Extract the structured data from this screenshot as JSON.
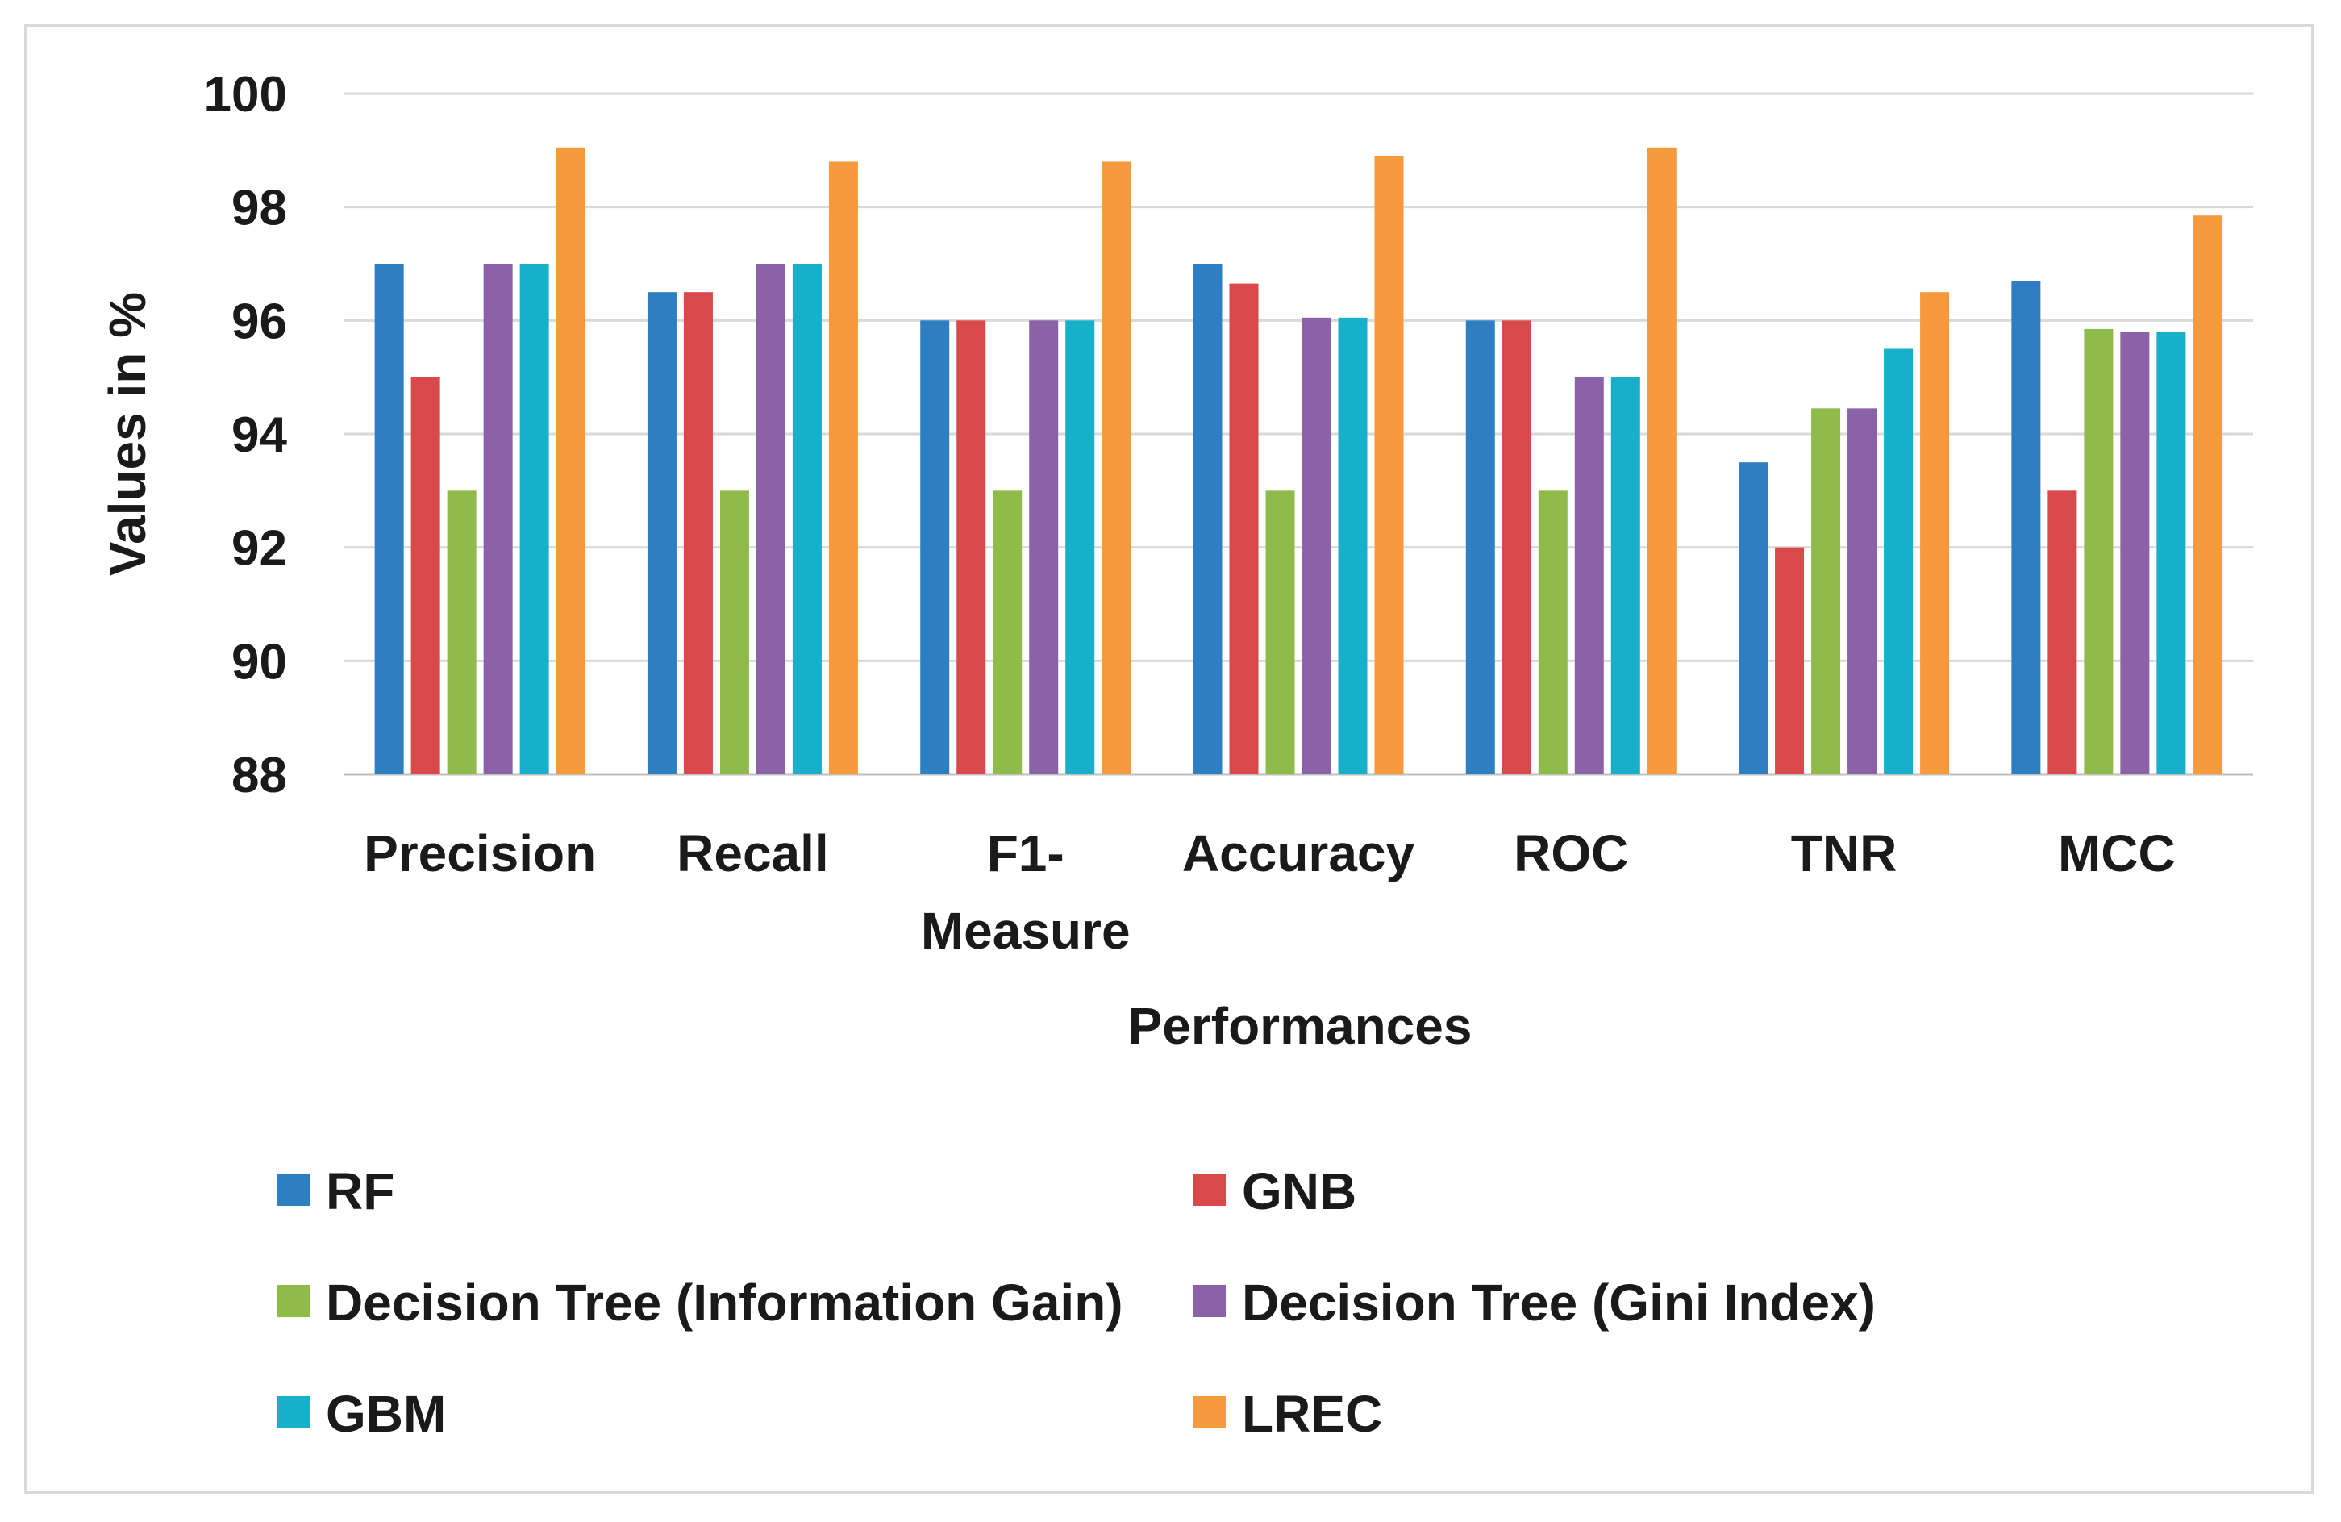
{
  "chart_data": {
    "type": "bar",
    "title": "",
    "xlabel": "Performances",
    "ylabel": "Values in %",
    "ylim": [
      88,
      100
    ],
    "yticks": [
      "88",
      "90",
      "92",
      "94",
      "96",
      "98",
      "100"
    ],
    "grid": true,
    "legend_position": "bottom",
    "categories": [
      [
        "Precision"
      ],
      [
        "Recall"
      ],
      [
        "F1-",
        "Measure"
      ],
      [
        "Accuracy"
      ],
      [
        "ROC"
      ],
      [
        "TNR"
      ],
      [
        "MCC"
      ]
    ],
    "series": [
      {
        "name": "RF",
        "color": "#2e7fc1",
        "values": [
          97,
          96.5,
          96,
          97,
          96,
          93.5,
          96.7
        ]
      },
      {
        "name": "GNB",
        "color": "#d9494b",
        "values": [
          95,
          96.5,
          96,
          96.65,
          96,
          92,
          93
        ]
      },
      {
        "name": "Decision Tree (Information Gain)",
        "color": "#8fbb4a",
        "values": [
          93,
          93,
          93,
          93,
          93,
          94.45,
          95.85
        ]
      },
      {
        "name": "Decision Tree (Gini Index)",
        "color": "#8b62a8",
        "values": [
          97,
          97,
          96,
          96.05,
          95,
          94.45,
          95.8
        ]
      },
      {
        "name": "GBM",
        "color": "#17afc9",
        "values": [
          97,
          97,
          96,
          96.05,
          95,
          95.5,
          95.8
        ]
      },
      {
        "name": "LREC",
        "color": "#f79a3e",
        "values": [
          99.05,
          98.8,
          98.8,
          98.9,
          99.05,
          96.5,
          97.85
        ]
      }
    ]
  }
}
